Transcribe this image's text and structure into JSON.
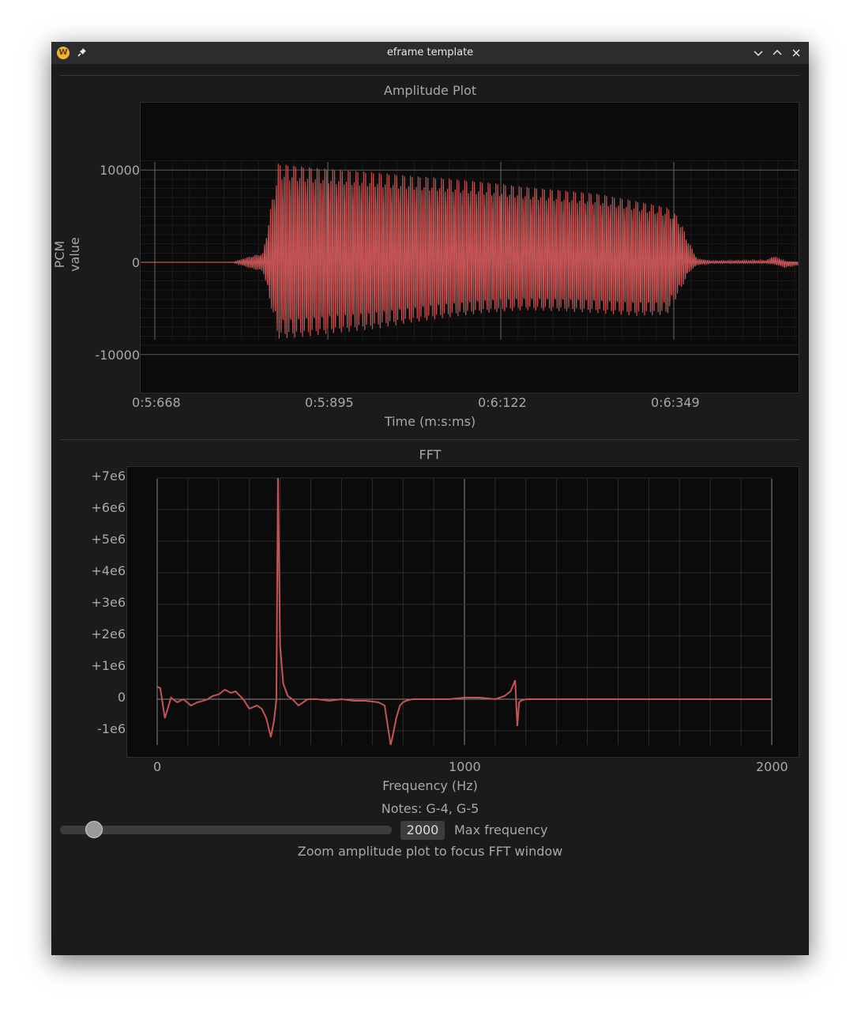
{
  "window": {
    "title": "eframe template",
    "app_icon": "W",
    "icons": [
      "app-icon",
      "pin-icon",
      "minimize-icon",
      "maximize-icon",
      "close-icon"
    ]
  },
  "amplitude": {
    "title": "Amplitude Plot",
    "ylabel": "PCM value",
    "xlabel": "Time (m:s:ms)",
    "yticks": [
      "10000",
      "0",
      "-10000"
    ],
    "xticks": [
      "0:5:668",
      "0:5:895",
      "0:6:122",
      "0:6:349"
    ]
  },
  "fft": {
    "title": "FFT",
    "xlabel": "Frequency (Hz)",
    "yticks": [
      "+7e6",
      "+6e6",
      "+5e6",
      "+4e6",
      "+3e6",
      "+2e6",
      "+1e6",
      "0",
      "-1e6"
    ],
    "xticks": [
      "0",
      "1000",
      "2000"
    ]
  },
  "controls": {
    "notes": "Notes: G-4, G-5",
    "max_frequency_value": "2000",
    "max_frequency_label": "Max frequency",
    "slider_fraction": 0.1,
    "hint": "Zoom amplitude plot to focus FFT window"
  },
  "colors": {
    "series": "#c55555",
    "background": "#1b1b1b",
    "plot_bg": "#0b0b0b"
  },
  "chart_data": [
    {
      "type": "area",
      "title": "Amplitude Plot",
      "xlabel": "Time (m:s:ms)",
      "ylabel": "PCM value",
      "x_ticks": [
        "0:5:668",
        "0:5:895",
        "0:6:122",
        "0:6:349"
      ],
      "ylim": [
        -14000,
        15500
      ],
      "series": [
        {
          "x_ms": [
            5650,
            5700,
            5750,
            5770,
            5795,
            5810,
            5830,
            5860,
            5900,
            5950,
            6000,
            6050,
            6100,
            6150,
            6200,
            6250,
            6300,
            6340,
            6355,
            6370,
            6380,
            6400,
            6450,
            6470,
            6480,
            6495,
            6516
          ],
          "upper": [
            0,
            0,
            0,
            0,
            700,
            1000,
            10800,
            10500,
            10200,
            9900,
            9500,
            9200,
            8800,
            8300,
            7900,
            7500,
            6700,
            6000,
            5000,
            2000,
            400,
            150,
            200,
            200,
            700,
            100,
            0
          ],
          "lower": [
            0,
            0,
            0,
            0,
            -700,
            -1000,
            -8300,
            -8100,
            -7700,
            -7300,
            -6600,
            -6000,
            -5500,
            -5200,
            -5300,
            -5500,
            -5800,
            -5700,
            -3500,
            -1000,
            -300,
            -100,
            -100,
            -100,
            -200,
            -600,
            -300
          ]
        }
      ]
    },
    {
      "type": "line",
      "title": "FFT",
      "xlabel": "Frequency (Hz)",
      "xlim": [
        0,
        2000
      ],
      "ylim": [
        -1500000,
        7000000
      ],
      "series": [
        {
          "x": [
            0,
            10,
            25,
            45,
            65,
            85,
            110,
            130,
            150,
            165,
            180,
            200,
            220,
            240,
            255,
            280,
            300,
            325,
            340,
            355,
            370,
            380,
            388,
            393,
            400,
            410,
            425,
            440,
            460,
            490,
            520,
            560,
            600,
            640,
            680,
            720,
            740,
            760,
            770,
            778,
            790,
            800,
            810,
            830,
            860,
            900,
            950,
            1000,
            1050,
            1100,
            1130,
            1150,
            1165,
            1172,
            1178,
            1183,
            1190,
            1200,
            1230,
            1300,
            1400,
            1500,
            1600,
            1700,
            1800,
            1900,
            2000
          ],
          "y": [
            400000,
            350000,
            -600000,
            50000,
            -100000,
            0,
            -200000,
            -100000,
            -50000,
            0,
            100000,
            150000,
            300000,
            200000,
            250000,
            0,
            -300000,
            -200000,
            -300000,
            -600000,
            -1200000,
            -700000,
            0,
            7000000,
            1700000,
            500000,
            100000,
            0,
            -200000,
            0,
            0,
            -50000,
            0,
            -50000,
            -50000,
            -100000,
            -200000,
            -1450000,
            -1000000,
            -600000,
            -200000,
            -100000,
            -50000,
            0,
            0,
            0,
            0,
            50000,
            50000,
            0,
            100000,
            250000,
            600000,
            -850000,
            -100000,
            -50000,
            -30000,
            0,
            0,
            0,
            0,
            0,
            0,
            0,
            0,
            0,
            0
          ]
        }
      ]
    }
  ]
}
